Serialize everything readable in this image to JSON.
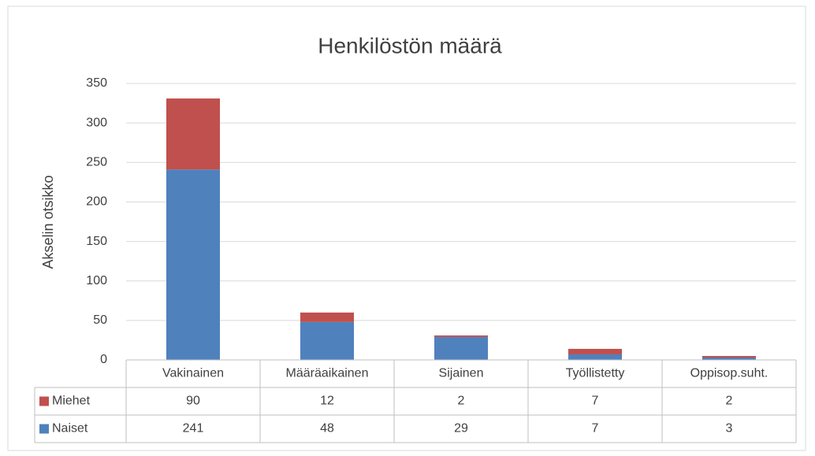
{
  "chart_data": {
    "type": "stacked_bar",
    "title": "Henkilöstön määrä",
    "y_label": "Akselin otsikko",
    "categories": [
      "Vakinainen",
      "Määräaikainen",
      "Sijainen",
      "Työllistetty",
      "Oppisop.suht."
    ],
    "series": [
      {
        "name": "Miehet",
        "color": "#c0504d",
        "values": [
          90,
          12,
          2,
          7,
          2
        ]
      },
      {
        "name": "Naiset",
        "color": "#4f81bd",
        "values": [
          241,
          48,
          29,
          7,
          3
        ]
      }
    ],
    "ylim": [
      0,
      350
    ],
    "yticks": [
      0,
      50,
      100,
      150,
      200,
      250,
      300,
      350
    ],
    "grid": true,
    "data_table": true
  }
}
